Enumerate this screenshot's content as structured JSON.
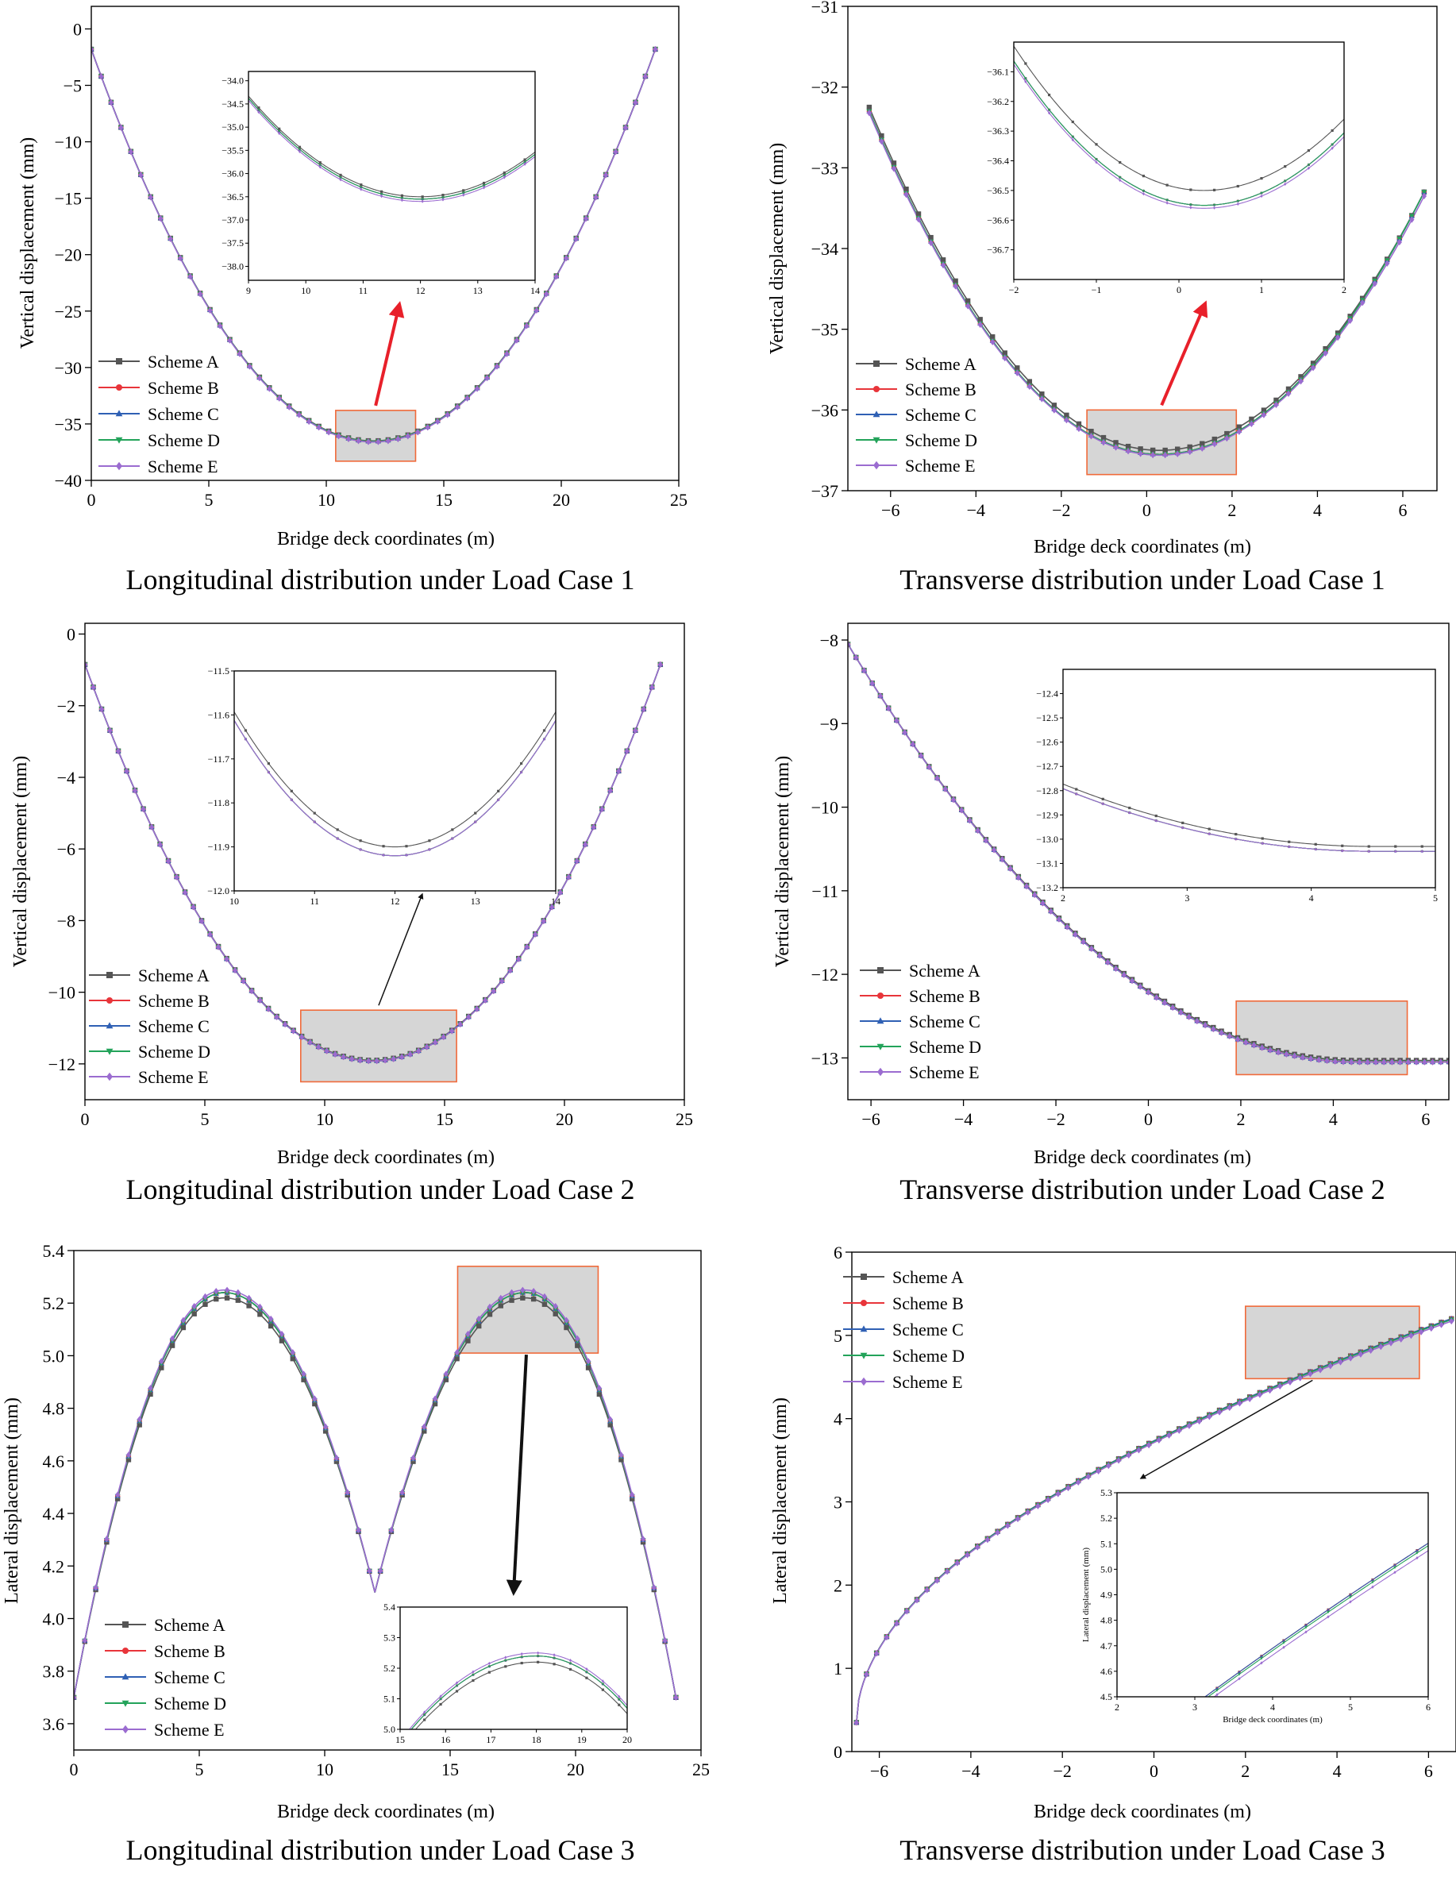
{
  "figure": {
    "legend_labels": [
      "Scheme  A",
      "Scheme  B",
      "Scheme  C",
      "Scheme  D",
      "Scheme  E"
    ],
    "series_colors": [
      "#555555",
      "#e8353a",
      "#2f60b4",
      "#23a35a",
      "#9b6cd0"
    ],
    "zoom_box_fill": "#d6d6d6",
    "zoom_box_stroke": "#f06a3a",
    "arrow_red": "#e8202a",
    "arrow_black": "#111111"
  },
  "chart_data": [
    {
      "id": "p1",
      "type": "line",
      "title": "Longitudinal distribution under Load Case 1",
      "xlabel": "Bridge deck coordinates  (m)",
      "ylabel": "Vertical displacement (mm)",
      "xlim": [
        0,
        25
      ],
      "ylim": [
        -40,
        2
      ],
      "xticks": [
        0,
        5,
        10,
        15,
        20,
        25
      ],
      "yticks": [
        0,
        -5,
        -10,
        -15,
        -20,
        -25,
        -30,
        -35,
        -40
      ],
      "x_range": [
        0,
        24
      ],
      "marker_count": 58,
      "series": [
        {
          "name": "Scheme  A",
          "shape": "parabola",
          "x_ends": [
            0,
            24
          ],
          "vertex_x": 12,
          "end_value": -1.8,
          "vertex_value": -36.5
        },
        {
          "name": "Scheme  B",
          "shape": "parabola",
          "x_ends": [
            0,
            24
          ],
          "vertex_x": 12,
          "end_value": -1.8,
          "vertex_value": -36.55
        },
        {
          "name": "Scheme  C",
          "shape": "parabola",
          "x_ends": [
            0,
            24
          ],
          "vertex_x": 12,
          "end_value": -1.8,
          "vertex_value": -36.55
        },
        {
          "name": "Scheme  D",
          "shape": "parabola",
          "x_ends": [
            0,
            24
          ],
          "vertex_x": 12,
          "end_value": -1.8,
          "vertex_value": -36.55
        },
        {
          "name": "Scheme  E",
          "shape": "parabola",
          "x_ends": [
            0,
            24
          ],
          "vertex_x": 12,
          "end_value": -1.8,
          "vertex_value": -36.6
        }
      ],
      "zoom_region": {
        "x": [
          10.4,
          13.8
        ],
        "y": [
          -38.3,
          -33.8
        ]
      },
      "inset": {
        "xlim": [
          9,
          14
        ],
        "ylim": [
          -38.3,
          -33.8
        ],
        "xticks": [
          9,
          10,
          11,
          12,
          13,
          14
        ],
        "yticks": [
          -34.0,
          -34.5,
          -35.0,
          -35.5,
          -36.0,
          -36.5,
          -37.0,
          -37.5,
          -38.0
        ],
        "ytick_labels": [
          "-34.0",
          "-34.5",
          "-35.0",
          "-35.5",
          "-36.0",
          "-36.5",
          "-37.0",
          "-37.5",
          "-38.0"
        ]
      },
      "arrow": "red"
    },
    {
      "id": "p2",
      "type": "line",
      "title": "Transverse distribution under Load Case 1",
      "xlabel": "Bridge deck coordinates  (m)",
      "ylabel": "Vertical displacement (mm)",
      "xlim": [
        -7,
        6.8
      ],
      "ylim": [
        -37,
        -31
      ],
      "xticks": [
        -6,
        -4,
        -2,
        0,
        2,
        4,
        6
      ],
      "yticks": [
        -31,
        -32,
        -33,
        -34,
        -35,
        -36,
        -37
      ],
      "x_range": [
        -6.5,
        6.5
      ],
      "marker_count": 46,
      "series": [
        {
          "name": "Scheme  A",
          "shape": "parabola",
          "x_ends": [
            -6.5,
            6.5
          ],
          "vertex_x": 0.3,
          "end_value": -32.25,
          "end_value_right": -33.3,
          "vertex_value": -36.5
        },
        {
          "name": "Scheme  B",
          "shape": "parabola",
          "x_ends": [
            -6.5,
            6.5
          ],
          "vertex_x": 0.3,
          "end_value": -32.3,
          "end_value_right": -33.3,
          "vertex_value": -36.55
        },
        {
          "name": "Scheme  C",
          "shape": "parabola",
          "x_ends": [
            -6.5,
            6.5
          ],
          "vertex_x": 0.3,
          "end_value": -32.3,
          "end_value_right": -33.3,
          "vertex_value": -36.55
        },
        {
          "name": "Scheme  D",
          "shape": "parabola",
          "x_ends": [
            -6.5,
            6.5
          ],
          "vertex_x": 0.3,
          "end_value": -32.3,
          "end_value_right": -33.3,
          "vertex_value": -36.55
        },
        {
          "name": "Scheme  E",
          "shape": "parabola",
          "x_ends": [
            -6.5,
            6.5
          ],
          "vertex_x": 0.3,
          "end_value": -32.32,
          "end_value_right": -33.35,
          "vertex_value": -36.56
        }
      ],
      "zoom_region": {
        "x": [
          -1.4,
          2.1
        ],
        "y": [
          -36.8,
          -36.0
        ]
      },
      "inset": {
        "xlim": [
          -2,
          2
        ],
        "ylim": [
          -36.8,
          -36.0
        ],
        "xticks": [
          -2,
          -1,
          0,
          1,
          2
        ],
        "yticks": [
          -36.1,
          -36.2,
          -36.3,
          -36.4,
          -36.5,
          -36.6,
          -36.7
        ],
        "ytick_labels": [
          "-36.1",
          "-36.2",
          "-36.3",
          "-36.4",
          "-36.5",
          "-36.6",
          "-36.7"
        ]
      },
      "arrow": "red"
    },
    {
      "id": "p3",
      "type": "line",
      "title": "Longitudinal distribution under Load Case 2",
      "xlabel": "Bridge deck coordinates  (m)",
      "ylabel": "Vertical displacement (mm)",
      "xlim": [
        0,
        25
      ],
      "ylim": [
        -13,
        0.3
      ],
      "xticks": [
        0,
        5,
        10,
        15,
        20,
        25
      ],
      "yticks": [
        0,
        -2,
        -4,
        -6,
        -8,
        -10,
        -12
      ],
      "x_range": [
        0,
        24
      ],
      "marker_count": 70,
      "series": [
        {
          "name": "Scheme  A",
          "shape": "parabola",
          "x_ends": [
            0,
            24
          ],
          "vertex_x": 12,
          "end_value": -0.85,
          "vertex_value": -11.9
        },
        {
          "name": "Scheme  B",
          "shape": "parabola",
          "x_ends": [
            0,
            24
          ],
          "vertex_x": 12,
          "end_value": -0.85,
          "vertex_value": -11.92
        },
        {
          "name": "Scheme  C",
          "shape": "parabola",
          "x_ends": [
            0,
            24
          ],
          "vertex_x": 12,
          "end_value": -0.85,
          "vertex_value": -11.92
        },
        {
          "name": "Scheme  D",
          "shape": "parabola",
          "x_ends": [
            0,
            24
          ],
          "vertex_x": 12,
          "end_value": -0.85,
          "vertex_value": -11.92
        },
        {
          "name": "Scheme  E",
          "shape": "parabola",
          "x_ends": [
            0,
            24
          ],
          "vertex_x": 12,
          "end_value": -0.85,
          "vertex_value": -11.92
        }
      ],
      "zoom_region": {
        "x": [
          9.0,
          15.5
        ],
        "y": [
          -12.5,
          -10.5
        ]
      },
      "inset": {
        "xlim": [
          10,
          14
        ],
        "ylim": [
          -12.0,
          -11.5
        ],
        "xticks": [
          10,
          11,
          12,
          13,
          14
        ],
        "yticks": [
          -11.5,
          -11.6,
          -11.7,
          -11.8,
          -11.9,
          -12.0
        ],
        "ytick_labels": [
          "-11.5",
          "-11.6",
          "-11.7",
          "-11.8",
          "-11.9",
          "-12.0"
        ]
      },
      "arrow": "black"
    },
    {
      "id": "p4",
      "type": "line",
      "title": "Transverse distribution under Load Case 2",
      "xlabel": "Bridge deck coordinates  (m)",
      "ylabel": "Vertical displacement (mm)",
      "xlim": [
        -6.5,
        6.5
      ],
      "ylim": [
        -13.5,
        -7.8
      ],
      "xticks": [
        -6,
        -4,
        -2,
        0,
        2,
        4,
        6
      ],
      "yticks": [
        -8,
        -9,
        -10,
        -11,
        -12,
        -13
      ],
      "x_range": [
        -6.5,
        6.5
      ],
      "marker_count": 75,
      "series": [
        {
          "name": "Scheme  A",
          "shape": "quad_to_flat",
          "x_ends": [
            -6.5,
            6.5
          ],
          "flat_x": 4.5,
          "start_value": -8.05,
          "flat_value": -13.03
        },
        {
          "name": "Scheme  B",
          "shape": "quad_to_flat",
          "x_ends": [
            -6.5,
            6.5
          ],
          "flat_x": 4.5,
          "start_value": -8.05,
          "flat_value": -13.05
        },
        {
          "name": "Scheme  C",
          "shape": "quad_to_flat",
          "x_ends": [
            -6.5,
            6.5
          ],
          "flat_x": 4.5,
          "start_value": -8.05,
          "flat_value": -13.05
        },
        {
          "name": "Scheme  D",
          "shape": "quad_to_flat",
          "x_ends": [
            -6.5,
            6.5
          ],
          "flat_x": 4.5,
          "start_value": -8.05,
          "flat_value": -13.05
        },
        {
          "name": "Scheme  E",
          "shape": "quad_to_flat",
          "x_ends": [
            -6.5,
            6.5
          ],
          "flat_x": 4.5,
          "start_value": -8.05,
          "flat_value": -13.05
        }
      ],
      "zoom_region": {
        "x": [
          1.9,
          5.6
        ],
        "y": [
          -13.2,
          -12.32
        ]
      },
      "inset": {
        "xlim": [
          2,
          5
        ],
        "ylim": [
          -13.2,
          -12.3
        ],
        "xticks": [
          2,
          3,
          4,
          5
        ],
        "yticks": [
          -12.4,
          -12.5,
          -12.6,
          -12.7,
          -12.8,
          -12.9,
          -13.0,
          -13.1,
          -13.2
        ],
        "ytick_labels": [
          "-12.4",
          "-12.5",
          "-12.6",
          "-12.7",
          "-12.8",
          "-12.9",
          "-13.0",
          "-13.1",
          "-13.2"
        ]
      },
      "arrow": "none"
    },
    {
      "id": "p5",
      "type": "line",
      "title": "Longitudinal distribution under Load Case 3",
      "xlabel": "Bridge deck coordinates  (m)",
      "ylabel": "Lateral displacement (mm)",
      "xlim": [
        0,
        25
      ],
      "ylim": [
        3.5,
        5.4
      ],
      "xticks": [
        0,
        5,
        10,
        15,
        20,
        25
      ],
      "yticks": [
        3.6,
        3.8,
        4.0,
        4.2,
        4.4,
        4.6,
        4.8,
        5.0,
        5.2,
        5.4
      ],
      "ytick_labels": [
        "3.6",
        "3.8",
        "4.0",
        "4.2",
        "4.4",
        "4.6",
        "4.8",
        "5.0",
        "5.2",
        "5.4"
      ],
      "x_range": [
        0,
        24
      ],
      "marker_count": 56,
      "series": [
        {
          "name": "Scheme  A",
          "shape": "double_arch",
          "x_ends": [
            0,
            24
          ],
          "peaks": [
            6,
            18
          ],
          "trough_x": 12,
          "end_value": 3.7,
          "peak_value": 5.22,
          "trough_value": 4.1
        },
        {
          "name": "Scheme  B",
          "shape": "double_arch",
          "x_ends": [
            0,
            24
          ],
          "peaks": [
            6,
            18
          ],
          "trough_x": 12,
          "end_value": 3.7,
          "peak_value": 5.24,
          "trough_value": 4.1
        },
        {
          "name": "Scheme  C",
          "shape": "double_arch",
          "x_ends": [
            0,
            24
          ],
          "peaks": [
            6,
            18
          ],
          "trough_x": 12,
          "end_value": 3.7,
          "peak_value": 5.24,
          "trough_value": 4.1
        },
        {
          "name": "Scheme  D",
          "shape": "double_arch",
          "x_ends": [
            0,
            24
          ],
          "peaks": [
            6,
            18
          ],
          "trough_x": 12,
          "end_value": 3.7,
          "peak_value": 5.24,
          "trough_value": 4.1
        },
        {
          "name": "Scheme  E",
          "shape": "double_arch",
          "x_ends": [
            0,
            24
          ],
          "peaks": [
            6,
            18
          ],
          "trough_x": 12,
          "end_value": 3.7,
          "peak_value": 5.25,
          "trough_value": 4.1
        }
      ],
      "zoom_region": {
        "x": [
          15.3,
          20.9
        ],
        "y": [
          5.01,
          5.34
        ]
      },
      "inset": {
        "xlim": [
          15,
          20
        ],
        "ylim": [
          5.0,
          5.4
        ],
        "xticks": [
          15,
          16,
          17,
          18,
          19,
          20
        ],
        "yticks": [
          5.0,
          5.1,
          5.2,
          5.3,
          5.4
        ],
        "ytick_labels": [
          "5.0",
          "5.1",
          "5.2",
          "5.3",
          "5.4"
        ]
      },
      "arrow": "black"
    },
    {
      "id": "p6",
      "type": "line",
      "title": "Transverse distribution under Load Case 3",
      "xlabel": "Bridge deck coordinates  (m)",
      "ylabel": "Lateral displacement (mm)",
      "xlim": [
        -6.6,
        6.6
      ],
      "ylim": [
        0,
        6
      ],
      "xticks": [
        -6,
        -4,
        -2,
        0,
        2,
        4,
        6
      ],
      "yticks": [
        0,
        1,
        2,
        3,
        4,
        5,
        6
      ],
      "x_range": [
        -6.5,
        6.5
      ],
      "marker_count": 60,
      "series": [
        {
          "name": "Scheme  A",
          "shape": "root",
          "x_ends": [
            -6.5,
            6.5
          ],
          "start_value": 0.35,
          "end_value": 5.2
        },
        {
          "name": "Scheme  B",
          "shape": "root",
          "x_ends": [
            -6.5,
            6.5
          ],
          "start_value": 0.35,
          "end_value": 5.2
        },
        {
          "name": "Scheme  C",
          "shape": "root",
          "x_ends": [
            -6.5,
            6.5
          ],
          "start_value": 0.35,
          "end_value": 5.2
        },
        {
          "name": "Scheme  D",
          "shape": "root",
          "x_ends": [
            -6.5,
            6.5
          ],
          "start_value": 0.35,
          "end_value": 5.19
        },
        {
          "name": "Scheme  E",
          "shape": "root",
          "x_ends": [
            -6.5,
            6.5
          ],
          "start_value": 0.35,
          "end_value": 5.17
        }
      ],
      "zoom_region": {
        "x": [
          2.0,
          5.8
        ],
        "y": [
          4.48,
          5.35
        ]
      },
      "inset": {
        "xlim": [
          2,
          6
        ],
        "ylim": [
          4.5,
          5.3
        ],
        "xticks": [
          2,
          3,
          4,
          5,
          6
        ],
        "yticks": [
          4.5,
          4.6,
          4.7,
          4.8,
          4.9,
          5.0,
          5.1,
          5.2,
          5.3
        ],
        "ytick_labels": [
          "4.5",
          "4.6",
          "4.7",
          "4.8",
          "4.9",
          "5.0",
          "5.1",
          "5.2",
          "5.3"
        ],
        "xlabel": "Bridge deck coordinates  (m)",
        "ylabel": "Lateral displacement (mm)"
      },
      "arrow": "black"
    }
  ]
}
